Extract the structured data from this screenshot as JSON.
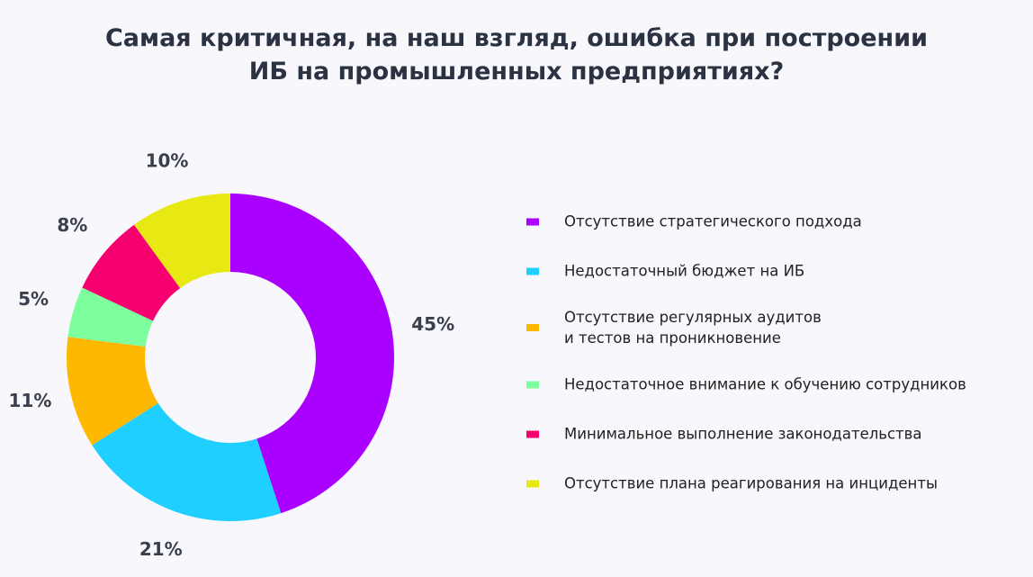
{
  "chart_data": {
    "type": "donut",
    "title": "Самая критичная, на наш взгляд, ошибка при построении\nИБ на промышленных предприятиях?",
    "series": [
      {
        "name": "Отсутствие стратегического подхода",
        "color": "#aa00ff",
        "values": [
          45
        ],
        "value_labels": [
          "45%"
        ]
      },
      {
        "name": "Недостаточный бюджет на ИБ",
        "color": "#1ecfff",
        "values": [
          21
        ],
        "value_labels": [
          "21%"
        ]
      },
      {
        "name": "Отсутствие регулярных аудитов\nи тестов на проникновение",
        "color": "#ffb800",
        "values": [
          11
        ],
        "value_labels": [
          "11%"
        ]
      },
      {
        "name": "Недостаточное внимание к обучению сотрудников",
        "color": "#7dff9e",
        "values": [
          5
        ],
        "value_labels": [
          "5%"
        ]
      },
      {
        "name": "Минимальное выполнение законодательства",
        "color": "#f5006e",
        "values": [
          8
        ],
        "value_labels": [
          "8%"
        ]
      },
      {
        "name": "Отсутствие плана реагирования на инциденты",
        "color": "#e8e812",
        "values": [
          10
        ],
        "value_labels": [
          "10%"
        ]
      }
    ]
  }
}
